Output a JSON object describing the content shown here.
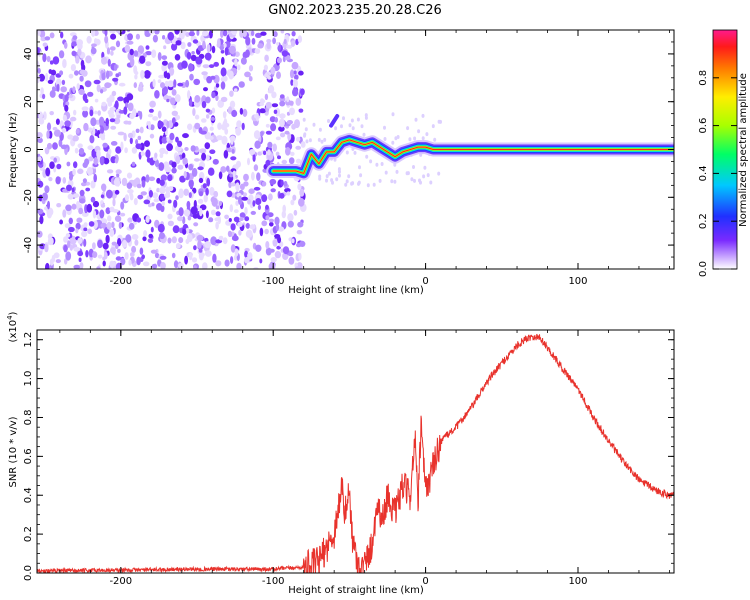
{
  "figure": {
    "title": "GN02.2023.235.20.28.C26"
  },
  "chart_data": [
    {
      "type": "heatmap",
      "title": "GN02.2023.235.20.28.C26",
      "xlabel": "Height of straight line (km)",
      "ylabel": "Frequency (Hz)",
      "xlim": [
        -255,
        163
      ],
      "ylim": [
        -50,
        50
      ],
      "x_ticks": [
        -200,
        -100,
        0,
        100
      ],
      "y_ticks": [
        -40,
        -20,
        0,
        20,
        40
      ],
      "colorbar": {
        "label": "Normalized spectral amplitude",
        "range": [
          0,
          1
        ],
        "ticks": [
          "0.0",
          "0.2",
          "0.4",
          "0.6",
          "0.8"
        ]
      },
      "noise_region_x": [
        -255,
        -80
      ],
      "frequency_track": {
        "x": [
          -100,
          -85,
          -80,
          -75,
          -70,
          -65,
          -60,
          -55,
          -50,
          -45,
          -40,
          -35,
          -30,
          -25,
          -20,
          -15,
          -10,
          -5,
          0,
          5,
          10,
          50,
          100,
          163
        ],
        "y": [
          -9,
          -9,
          -10,
          -2,
          -6,
          -1,
          -1,
          3,
          4,
          3,
          2,
          3,
          1,
          -1,
          -3,
          -1,
          0,
          1,
          1,
          0,
          0,
          0,
          0,
          0
        ]
      },
      "grid": false
    },
    {
      "type": "line",
      "xlabel": "Height of straight line (km)",
      "ylabel": "SNR (10 * v/v)",
      "y_multiplier": "(x10",
      "y_multiplier_exp": "4",
      "y_multiplier_close": ")",
      "xlim": [
        -255,
        163
      ],
      "ylim": [
        0,
        1.25
      ],
      "x_ticks": [
        -200,
        -100,
        0,
        100
      ],
      "y_ticks": [
        "0.0",
        "0.2",
        "0.4",
        "0.6",
        "0.8",
        "1.0",
        "1.2"
      ],
      "color": "#e8322c",
      "series": [
        {
          "x": [
            -255,
            -200,
            -150,
            -100,
            -80,
            -70,
            -60,
            -55,
            -53,
            -50,
            -48,
            -45,
            -42,
            -40,
            -35,
            -32,
            -28,
            -25,
            -20,
            -15,
            -10,
            -7,
            -5,
            -3,
            0,
            5,
            10,
            20,
            30,
            40,
            50,
            60,
            65,
            70,
            75,
            80,
            90,
            100,
            110,
            120,
            130,
            140,
            150,
            160,
            163
          ],
          "y": [
            0.01,
            0.015,
            0.02,
            0.02,
            0.03,
            0.06,
            0.2,
            0.45,
            0.3,
            0.42,
            0.18,
            0.06,
            0.02,
            0.04,
            0.15,
            0.35,
            0.28,
            0.4,
            0.3,
            0.45,
            0.4,
            0.7,
            0.35,
            0.75,
            0.42,
            0.55,
            0.68,
            0.75,
            0.85,
            0.98,
            1.08,
            1.17,
            1.2,
            1.22,
            1.21,
            1.16,
            1.05,
            0.95,
            0.8,
            0.68,
            0.57,
            0.48,
            0.43,
            0.4,
            0.4
          ]
        }
      ],
      "grid": false
    }
  ]
}
